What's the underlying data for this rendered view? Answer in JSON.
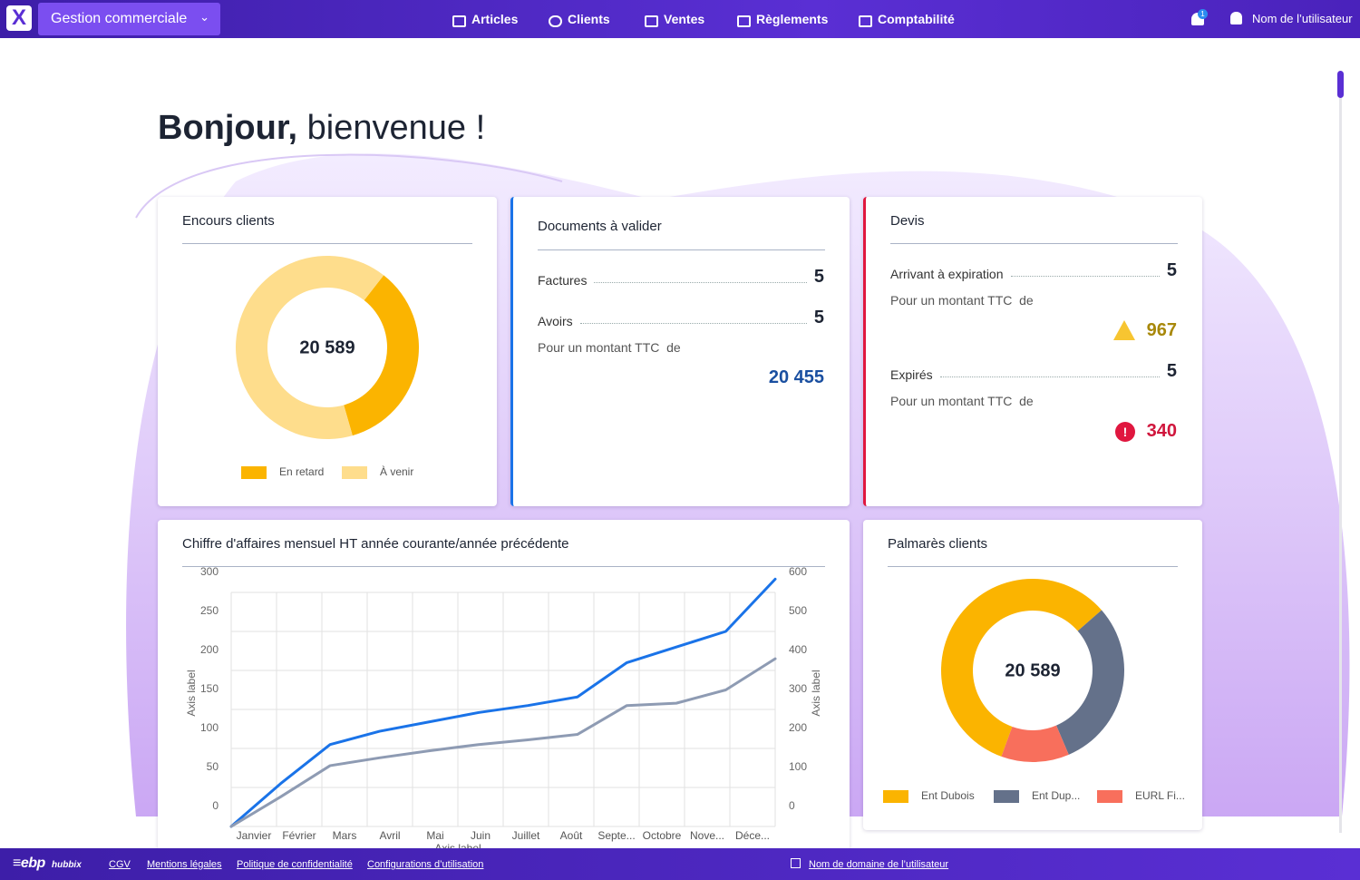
{
  "header": {
    "app_title": "Gestion commerciale",
    "nav": [
      "Articles",
      "Clients",
      "Ventes",
      "Règlements",
      "Comptabilité"
    ],
    "notification_count": "1",
    "user_name": "Nom de l’utilisateur"
  },
  "greeting": {
    "strong": "Bonjour,",
    "text": "bienvenue !"
  },
  "documents": {
    "title": "Documents à valider",
    "rows": [
      {
        "label": "Factures",
        "count": "5"
      },
      {
        "label": "Avoirs",
        "count": "5"
      }
    ],
    "amount_label": "Pour un montant TTC  de",
    "amount": "20 455"
  },
  "devis": {
    "title": "Devis",
    "groups": [
      {
        "label": "Arrivant à expiration",
        "count": "5",
        "amount_label": "Pour un montant TTC  de",
        "amount": "967"
      },
      {
        "label": "Expirés",
        "count": "5",
        "amount_label": "Pour un montant TTC  de",
        "amount": "340"
      }
    ]
  },
  "chart_data": [
    {
      "type": "pie",
      "title": "Encours clients",
      "center_label": "20 589",
      "categories": [
        "En retard",
        "À venir"
      ],
      "values": [
        35,
        65
      ],
      "colors": [
        "#fbb400",
        "#fedd8c"
      ]
    },
    {
      "type": "line",
      "title": "Chiffre d'affaires mensuel HT année courante/année précédente",
      "categories": [
        "Janvier",
        "Février",
        "Mars",
        "Avril",
        "Mai",
        "Juin",
        "Juillet",
        "Août",
        "Septe...",
        "Octobre",
        "Nove...",
        "Déce..."
      ],
      "y_label": "Axis label",
      "y2_label": "Axis label",
      "x_label": "Axis label",
      "ylim": [
        0,
        300
      ],
      "yticks": [
        0,
        50,
        100,
        150,
        200,
        250,
        300
      ],
      "y2lim": [
        0,
        600
      ],
      "y2ticks": [
        0,
        100,
        200,
        300,
        400,
        500,
        600
      ],
      "grid": true,
      "series": [
        {
          "color": "#1a73e8",
          "values": [
            0,
            55,
            105,
            122,
            134,
            146,
            155,
            166,
            210,
            230,
            250,
            317
          ]
        },
        {
          "color": "#8e9bb3",
          "values": [
            0,
            38,
            78,
            88,
            97,
            105,
            111,
            118,
            155,
            158,
            175,
            215
          ]
        }
      ]
    },
    {
      "type": "pie",
      "title": "Palmarès clients",
      "center_label": "20 589",
      "categories": [
        "Ent Dubois",
        "Ent Dup...",
        "EURL Fi..."
      ],
      "values": [
        58,
        30,
        12
      ],
      "colors": [
        "#fbb400",
        "#64718a",
        "#f86f5c"
      ]
    }
  ],
  "footer": {
    "brand": "ebp",
    "product": "hubbix",
    "links": [
      "CGV",
      "Mentions légales",
      "Politique de confidentialité",
      "Configurations d’utilisation"
    ],
    "domain": "Nom de domaine de l’utilisateur"
  }
}
